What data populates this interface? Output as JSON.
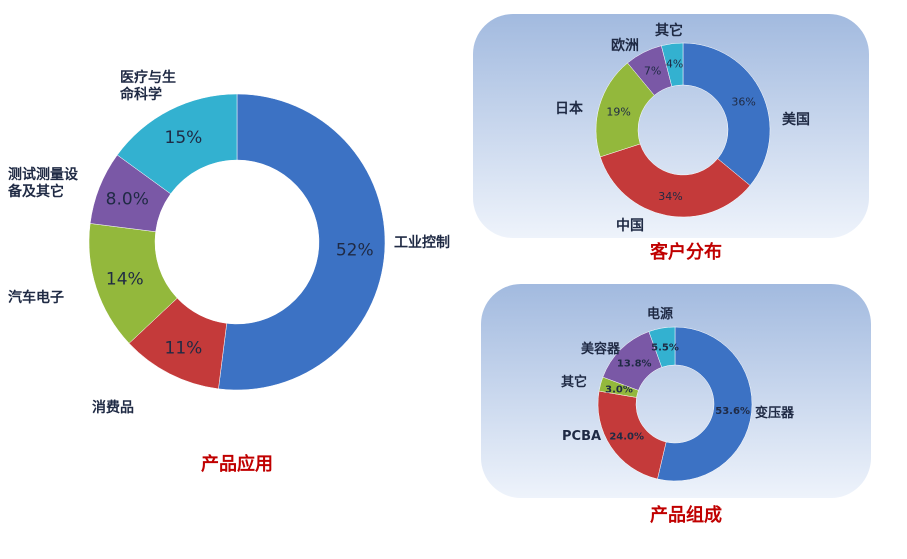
{
  "chart_data": [
    {
      "type": "pie",
      "title": "产品应用",
      "categories": [
        "工业控制",
        "消费品",
        "汽车电子",
        "测试测量设备及其它",
        "医疗与生命科学"
      ],
      "values": [
        52,
        11,
        14,
        8.0,
        15
      ],
      "value_labels": [
        "52%",
        "11%",
        "14%",
        "8.0%",
        "15%"
      ],
      "label_lines": [
        [
          "工业控制"
        ],
        [
          "消费品"
        ],
        [
          "汽车电子"
        ],
        [
          "测试测量设",
          "备及其它"
        ],
        [
          "医疗与生",
          "命科学"
        ]
      ],
      "colors": [
        "#3c72c4",
        "#c43a3a",
        "#93b83c",
        "#7a58a6",
        "#33b1d0"
      ],
      "legend": "none"
    },
    {
      "type": "pie",
      "title": "客户分布",
      "categories": [
        "美国",
        "中国",
        "日本",
        "欧洲",
        "其它"
      ],
      "values": [
        36,
        34,
        19,
        7,
        4
      ],
      "value_labels": [
        "36%",
        "34%",
        "19%",
        "7%",
        "4%"
      ],
      "label_lines": [
        [
          "美国"
        ],
        [
          "中国"
        ],
        [
          "日本"
        ],
        [
          "欧洲"
        ],
        [
          "其它"
        ]
      ],
      "colors": [
        "#3c72c4",
        "#c43a3a",
        "#93b83c",
        "#7a58a6",
        "#33b1d0"
      ],
      "legend": "none"
    },
    {
      "type": "pie",
      "title": "产品组成",
      "categories": [
        "变压器",
        "PCBA",
        "其它",
        "美容器",
        "电源"
      ],
      "values": [
        53.6,
        24.0,
        3.0,
        13.8,
        5.5
      ],
      "value_labels": [
        "53.6%",
        "24.0%",
        "3.0%",
        "13.8%",
        "5.5%"
      ],
      "label_lines": [
        [
          "变压器"
        ],
        [
          "PCBA"
        ],
        [
          "其它"
        ],
        [
          "美容器"
        ],
        [
          "电源"
        ]
      ],
      "colors": [
        "#3c72c4",
        "#c43a3a",
        "#93b83c",
        "#7a58a6",
        "#33b1d0"
      ],
      "legend": "none"
    }
  ],
  "theme": {
    "title_color": "#c00000",
    "label_color": "#1f2a44",
    "value_color": "#1f2a44",
    "panel_top_color": "#a2badf",
    "panel_bottom_color": "#eef3fb"
  }
}
